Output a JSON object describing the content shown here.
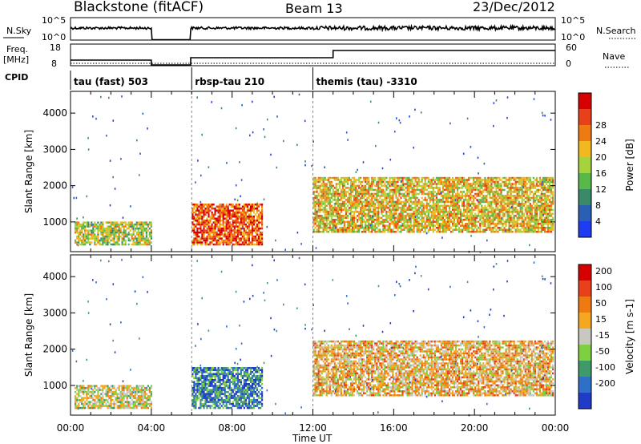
{
  "header": {
    "radar": "Blackstone (fitACF)",
    "beam": "Beam 13",
    "date": "23/Dec/2012"
  },
  "strips": {
    "nsky_label": "N.Sky",
    "nsearch_label": "N.Search",
    "nsky_ticks": [
      "10^5",
      "10^0"
    ],
    "nsearch_ticks": [
      "10^5",
      "10^0"
    ],
    "freq_label": "Freq.",
    "freq_unit": "[MHz]",
    "freq_ticks": [
      "18",
      "8"
    ],
    "nave_label": "Nave",
    "nave_ticks": [
      "60",
      "0"
    ],
    "cpid_label": "CPID"
  },
  "cpid_segments": [
    {
      "label": "tau (fast) 503",
      "start": 0.0,
      "end": 6.0
    },
    {
      "label": "rbsp-tau 210",
      "start": 6.0,
      "end": 12.0
    },
    {
      "label": "themis (tau) -3310",
      "start": 12.0,
      "end": 24.0
    }
  ],
  "chart_data": [
    {
      "type": "heatmap",
      "title": "Power",
      "ylabel": "Slant Range [km]",
      "xlabel": "Time UT",
      "xlim": [
        0,
        24
      ],
      "ylim": [
        180,
        4600
      ],
      "x_ticks": [
        "00:00",
        "04:00",
        "08:00",
        "12:00",
        "16:00",
        "20:00",
        "00:00"
      ],
      "y_ticks": [
        1000,
        2000,
        3000,
        4000
      ],
      "colorbar": {
        "label": "Power [dB]",
        "ticks": [
          "4",
          "8",
          "12",
          "16",
          "20",
          "24",
          "28"
        ],
        "colors": [
          "#1f3cf0",
          "#2b5fb3",
          "#3a8a6a",
          "#58b84a",
          "#a6d23c",
          "#f2b81f",
          "#f07a12",
          "#e8401a",
          "#d60000"
        ]
      },
      "regions": [
        {
          "t0": 0.2,
          "t1": 4.0,
          "r0": 350,
          "r1": 1000,
          "level": 0.5
        },
        {
          "t0": 6.0,
          "t1": 9.5,
          "r0": 350,
          "r1": 1500,
          "level": 0.8
        },
        {
          "t0": 12.0,
          "t1": 23.9,
          "r0": 700,
          "r1": 2200,
          "level": 0.6
        }
      ]
    },
    {
      "type": "heatmap",
      "title": "Velocity",
      "ylabel": "Slant Range [km]",
      "xlabel": "Time UT",
      "xlim": [
        0,
        24
      ],
      "ylim": [
        180,
        4600
      ],
      "x_ticks": [
        "00:00",
        "04:00",
        "08:00",
        "12:00",
        "16:00",
        "20:00",
        "00:00"
      ],
      "y_ticks": [
        1000,
        2000,
        3000,
        4000
      ],
      "colorbar": {
        "label": "Velocity [m s-1]",
        "ticks": [
          "200",
          "100",
          "50",
          "15",
          "-15",
          "-50",
          "-100",
          "-200"
        ],
        "colors": [
          "#1f3cc8",
          "#2f6fc8",
          "#3f9a6a",
          "#7fd040",
          "#c8c8c0",
          "#f5a81f",
          "#f07a12",
          "#e8401a",
          "#d60000"
        ]
      },
      "regions": [
        {
          "t0": 0.2,
          "t1": 4.0,
          "r0": 350,
          "r1": 1000,
          "level": 0.5
        },
        {
          "t0": 6.0,
          "t1": 9.5,
          "r0": 350,
          "r1": 1500,
          "level": 0.2
        },
        {
          "t0": 12.0,
          "t1": 23.9,
          "r0": 700,
          "r1": 2200,
          "level": 0.6
        }
      ]
    }
  ]
}
